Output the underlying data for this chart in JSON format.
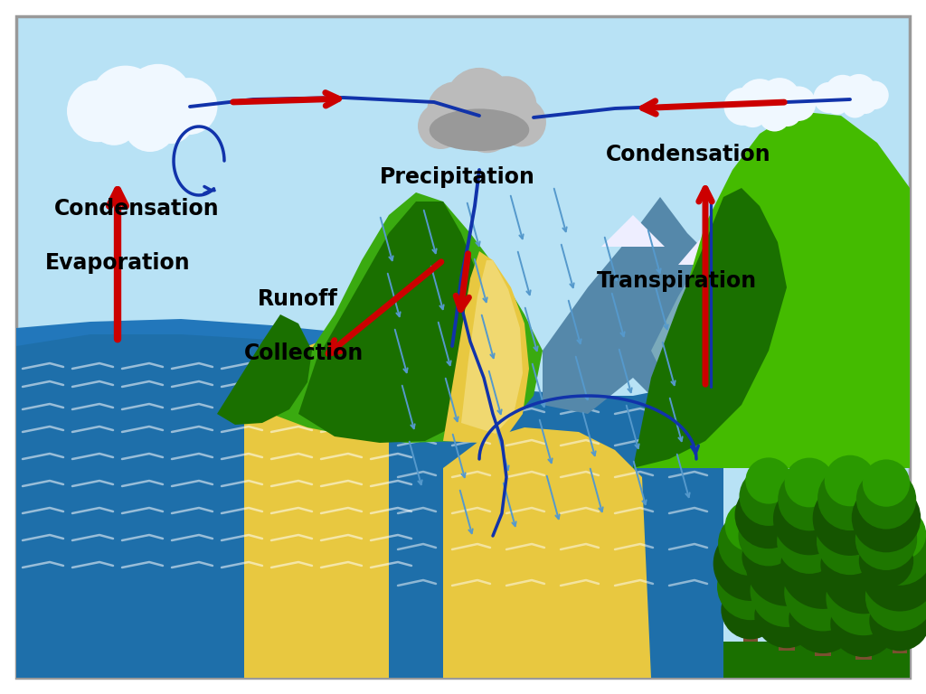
{
  "bg_color": "#c8eaf8",
  "border_color": "#999999",
  "sky_color": "#b8e2f5",
  "water_color": "#1e6faa",
  "water_mid": "#2277bb",
  "water_light": "#5599cc",
  "land_green_dark": "#1a7000",
  "land_green_mid": "#3aaa10",
  "land_green_light": "#6ac830",
  "land_green_bright": "#88dd44",
  "hill_green_right": "#44bb00",
  "mountain_blue_dark": "#5588aa",
  "mountain_blue_light": "#7aaabb",
  "sand_color": "#e8c840",
  "sand_light": "#f0d870",
  "cloud_white": "#f0f8ff",
  "cloud_gray_dark": "#999999",
  "cloud_gray_mid": "#bbbbbb",
  "snow_white": "#eeeeff",
  "tree_dark": "#155500",
  "tree_mid": "#1e7700",
  "tree_light": "#2a9900",
  "trunk_color": "#7a5030",
  "ground_green": "#2d8800",
  "arrow_red": "#cc0000",
  "arrow_blue": "#1133aa",
  "rain_blue": "#5599cc",
  "text_color": "#000000",
  "labels": {
    "condensation_left": "Condensation",
    "evaporation": "Evaporation",
    "precipitation": "Precipitation",
    "runoff": "Runoff",
    "collection": "Collection",
    "condensation_right": "Condensation",
    "transpiration": "Transpiration"
  },
  "label_fontsize": 15,
  "label_fontsize_large": 17
}
